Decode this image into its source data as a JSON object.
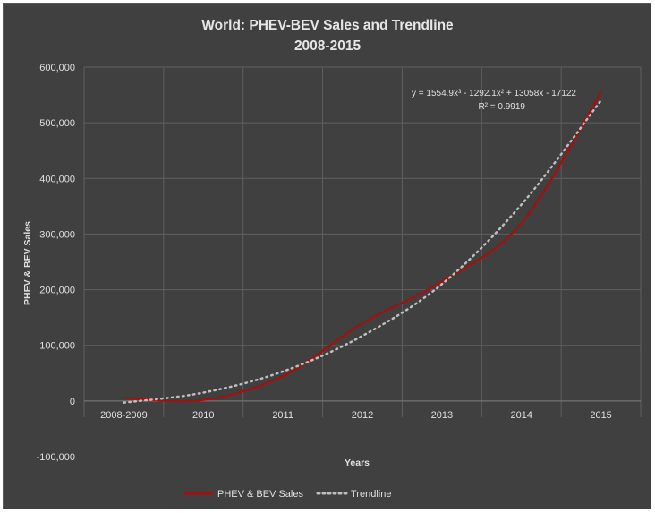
{
  "chart_data": {
    "type": "line",
    "title": "World: PHEV-BEV Sales and Trendline",
    "subtitle": "2008-2015",
    "xlabel": "Years",
    "ylabel": "PHEV & BEV Sales",
    "categories": [
      "2008-2009",
      "2010",
      "2011",
      "2012",
      "2013",
      "2014",
      "2015"
    ],
    "y_ticks": [
      -100000,
      0,
      100000,
      200000,
      300000,
      400000,
      500000,
      600000
    ],
    "y_tick_labels": [
      "-100,000",
      "0",
      "100,000",
      "200,000",
      "300,000",
      "400,000",
      "500,000",
      "600,000"
    ],
    "ylim": [
      -100000,
      600000
    ],
    "grid": true,
    "legend_position": "bottom",
    "series": [
      {
        "name": "PHEV & BEV Sales",
        "values": [
          6000,
          2000,
          45000,
          140000,
          215000,
          320000,
          555000
        ],
        "color": "#9b1414",
        "style": "solid"
      },
      {
        "name": "Trendline",
        "values": [
          -3000,
          15000,
          53000,
          117000,
          210000,
          353000,
          540000
        ],
        "color": "#bfbfbf",
        "style": "dotted"
      }
    ],
    "annotations": [
      "y = 1554.9x³ - 1292.1x² + 13058x - 17122",
      "R² = 0.9919"
    ]
  }
}
